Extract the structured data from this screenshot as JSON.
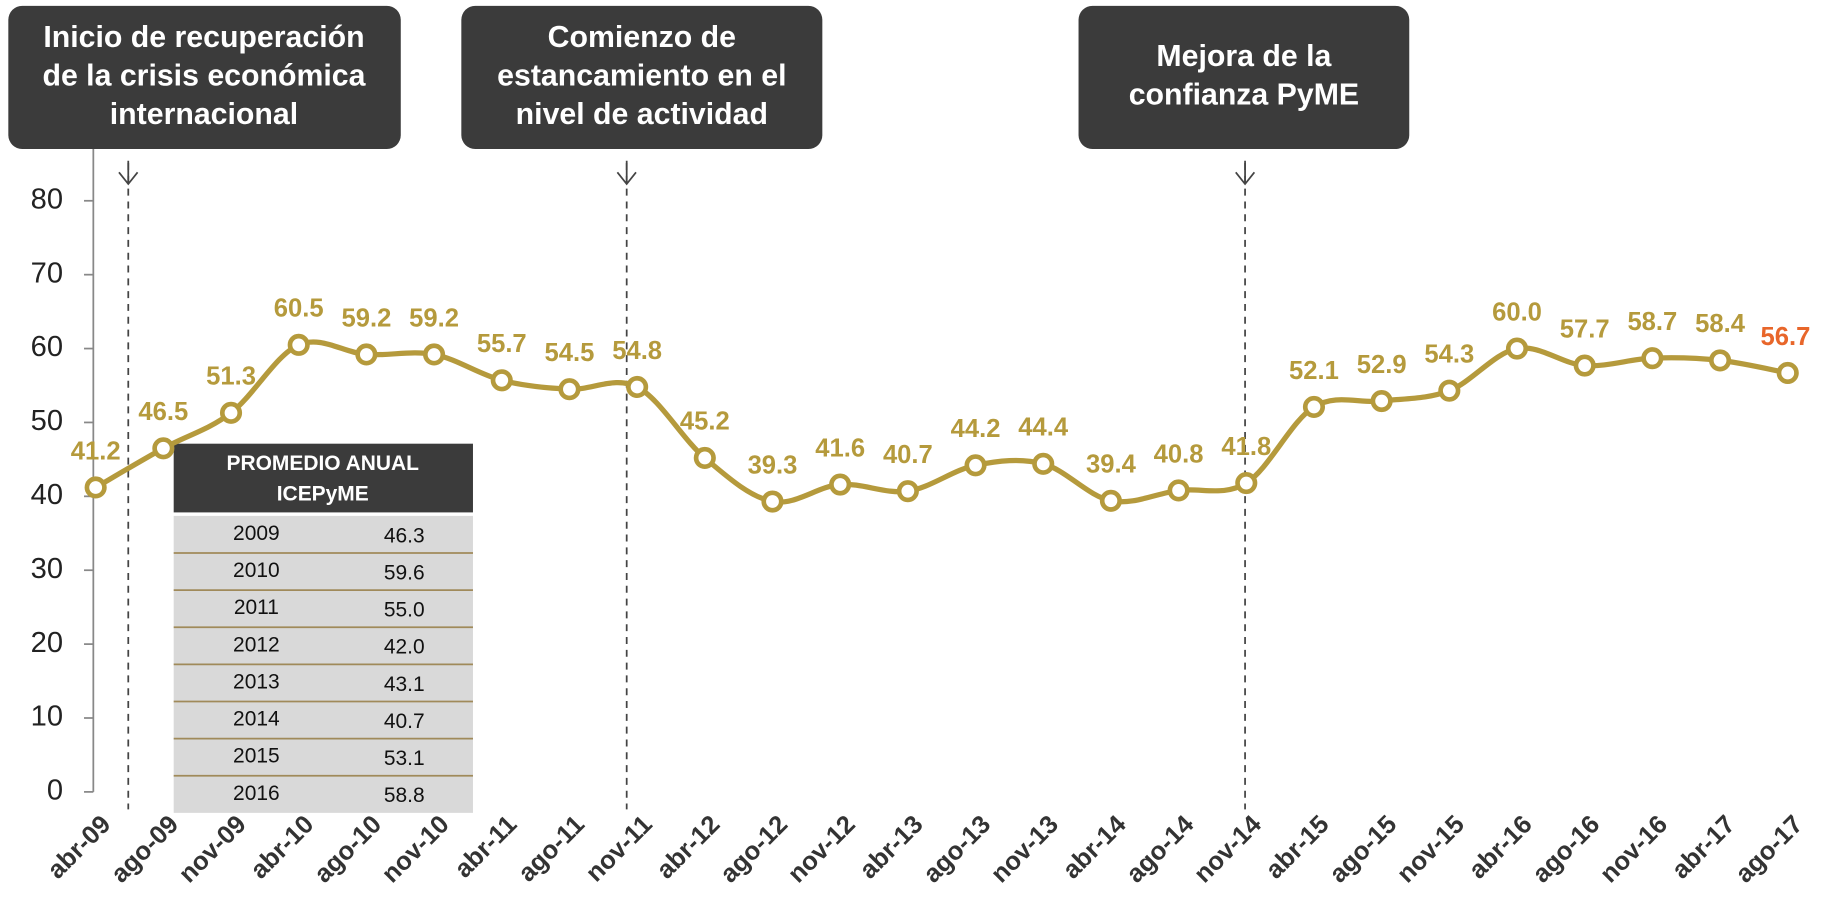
{
  "chart_data": {
    "type": "line",
    "categories": [
      "abr-09",
      "ago-09",
      "nov-09",
      "abr-10",
      "ago-10",
      "nov-10",
      "abr-11",
      "ago-11",
      "nov-11",
      "abr-12",
      "ago-12",
      "nov-12",
      "abr-13",
      "ago-13",
      "nov-13",
      "abr-14",
      "ago-14",
      "nov-14",
      "abr-15",
      "ago-15",
      "nov-15",
      "abr-16",
      "ago-16",
      "nov-16",
      "abr-17",
      "ago-17"
    ],
    "values": [
      41.2,
      46.5,
      51.3,
      60.5,
      59.2,
      59.2,
      55.7,
      54.5,
      54.8,
      45.2,
      39.3,
      41.6,
      40.7,
      44.2,
      44.4,
      39.4,
      40.8,
      41.8,
      52.1,
      52.9,
      54.3,
      60.0,
      57.7,
      58.7,
      58.4,
      56.7
    ],
    "value_labels": [
      "41.2",
      "46.5",
      "51.3",
      "60.5",
      "59.2",
      "59.2",
      "55.7",
      "54.5",
      "54.8",
      "45.2",
      "39.3",
      "41.6",
      "40.7",
      "44.2",
      "44.4",
      "39.4",
      "40.8",
      "41.8",
      "52.1",
      "52.9",
      "54.3",
      "60.0",
      "57.7",
      "58.7",
      "58.4",
      "56.7"
    ],
    "color": "#b59a3c",
    "label_color": "#b59a3c",
    "last_label_color": "#e8662a",
    "ylim": [
      0,
      87
    ],
    "yticks": [
      0,
      10,
      20,
      30,
      40,
      50,
      60,
      70,
      80
    ],
    "grid": false,
    "annotations": [
      {
        "lines": [
          "Inicio de recuperación",
          "de la crisis económica",
          "internacional"
        ]
      },
      {
        "lines": [
          "Comienzo de",
          "estancamiento en el",
          "nivel de actividad"
        ]
      },
      {
        "lines": [
          "Mejora de la",
          "confianza PyME"
        ]
      }
    ]
  },
  "table": {
    "header": [
      "PROMEDIO ANUAL",
      "ICEPyME"
    ],
    "rows": [
      [
        "2009",
        "46.3"
      ],
      [
        "2010",
        "59.6"
      ],
      [
        "2011",
        "55.0"
      ],
      [
        "2012",
        "42.0"
      ],
      [
        "2013",
        "43.1"
      ],
      [
        "2014",
        "40.7"
      ],
      [
        "2015",
        "53.1"
      ],
      [
        "2016",
        "58.8"
      ]
    ]
  }
}
